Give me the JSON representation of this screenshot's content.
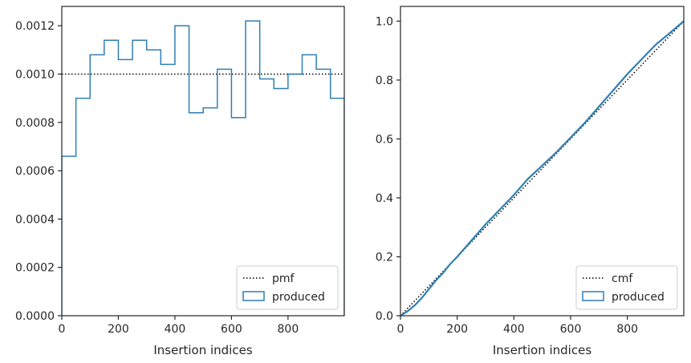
{
  "chart_data": [
    {
      "type": "line",
      "style": "step-histogram",
      "xlabel": "Insertion indices",
      "ylabel": "",
      "xlim": [
        0,
        999
      ],
      "ylim": [
        0,
        0.00128
      ],
      "x_ticks": [
        0,
        200,
        400,
        600,
        800
      ],
      "x_tick_labels": [
        "0",
        "200",
        "400",
        "600",
        "800"
      ],
      "y_ticks": [
        0,
        0.0002,
        0.0004,
        0.0006,
        0.0008,
        0.001,
        0.0012
      ],
      "y_tick_labels": [
        "0.0000",
        "0.0002",
        "0.0004",
        "0.0006",
        "0.0008",
        "0.0010",
        "0.0012"
      ],
      "grid": false,
      "legend_position": "lower-right",
      "series": [
        {
          "name": "pmf",
          "kind": "reference-line",
          "color": "#000000",
          "dash": "dotted",
          "y": 0.001
        },
        {
          "name": "produced",
          "kind": "step",
          "color": "#2f7fb3",
          "bin_edges": [
            0,
            50,
            100,
            150,
            200,
            250,
            300,
            350,
            400,
            450,
            500,
            550,
            600,
            650,
            700,
            750,
            800,
            850,
            900,
            950,
            999
          ],
          "values": [
            0.00066,
            0.0009,
            0.00108,
            0.00114,
            0.00106,
            0.00114,
            0.0011,
            0.00104,
            0.0012,
            0.00084,
            0.00086,
            0.00102,
            0.00082,
            0.00122,
            0.00098,
            0.00094,
            0.001,
            0.00108,
            0.00102,
            0.0009
          ]
        }
      ]
    },
    {
      "type": "line",
      "xlabel": "Insertion indices",
      "ylabel": "",
      "xlim": [
        0,
        999
      ],
      "ylim": [
        0,
        1.05
      ],
      "x_ticks": [
        0,
        200,
        400,
        600,
        800
      ],
      "x_tick_labels": [
        "0",
        "200",
        "400",
        "600",
        "800"
      ],
      "y_ticks": [
        0,
        0.2,
        0.4,
        0.6,
        0.8,
        1.0
      ],
      "y_tick_labels": [
        "0.0",
        "0.2",
        "0.4",
        "0.6",
        "0.8",
        "1.0"
      ],
      "grid": false,
      "legend_position": "lower-right",
      "series": [
        {
          "name": "cmf",
          "kind": "reference-line",
          "color": "#000000",
          "dash": "dotted",
          "x": [
            0,
            999
          ],
          "y": [
            0,
            1.0
          ]
        },
        {
          "name": "produced",
          "kind": "line",
          "color": "#2f7fb3",
          "x": [
            0,
            25,
            50,
            75,
            100,
            125,
            150,
            175,
            200,
            250,
            300,
            350,
            400,
            450,
            500,
            550,
            600,
            650,
            700,
            750,
            800,
            850,
            900,
            950,
            999
          ],
          "y": [
            0,
            0.015,
            0.035,
            0.06,
            0.09,
            0.12,
            0.145,
            0.175,
            0.2,
            0.255,
            0.31,
            0.36,
            0.41,
            0.465,
            0.51,
            0.555,
            0.605,
            0.655,
            0.71,
            0.765,
            0.82,
            0.87,
            0.92,
            0.96,
            1.0
          ]
        }
      ]
    }
  ]
}
